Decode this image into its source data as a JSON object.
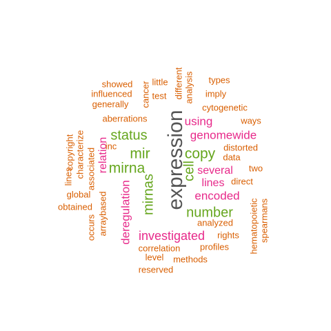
{
  "colors": {
    "orange": "#d95f02",
    "green": "#66a61e",
    "magenta": "#e7298a",
    "gray": "#555555"
  },
  "words": [
    {
      "text": "expression",
      "color": "gray"
    },
    {
      "text": "number",
      "color": "green"
    },
    {
      "text": "mirna",
      "color": "green"
    },
    {
      "text": "mir",
      "color": "green"
    },
    {
      "text": "copy",
      "color": "green"
    },
    {
      "text": "status",
      "color": "green"
    },
    {
      "text": "mirnas",
      "color": "green"
    },
    {
      "text": "cell",
      "color": "green"
    },
    {
      "text": "deregulation",
      "color": "magenta"
    },
    {
      "text": "investigated",
      "color": "magenta"
    },
    {
      "text": "genomewide",
      "color": "magenta"
    },
    {
      "text": "using",
      "color": "magenta"
    },
    {
      "text": "several",
      "color": "magenta"
    },
    {
      "text": "lines",
      "color": "magenta"
    },
    {
      "text": "encoded",
      "color": "magenta"
    },
    {
      "text": "relation",
      "color": "magenta"
    },
    {
      "text": "showed",
      "color": "orange"
    },
    {
      "text": "little",
      "color": "orange"
    },
    {
      "text": "different",
      "color": "orange"
    },
    {
      "text": "types",
      "color": "orange"
    },
    {
      "text": "influenced",
      "color": "orange"
    },
    {
      "text": "test",
      "color": "orange"
    },
    {
      "text": "cancer",
      "color": "orange"
    },
    {
      "text": "analysis",
      "color": "orange"
    },
    {
      "text": "imply",
      "color": "orange"
    },
    {
      "text": "generally",
      "color": "orange"
    },
    {
      "text": "cytogenetic",
      "color": "orange"
    },
    {
      "text": "aberrations",
      "color": "orange"
    },
    {
      "text": "ways",
      "color": "orange"
    },
    {
      "text": "copyright",
      "color": "orange"
    },
    {
      "text": "characterize",
      "color": "orange"
    },
    {
      "text": "inc",
      "color": "orange"
    },
    {
      "text": "associated",
      "color": "orange"
    },
    {
      "text": "distorted",
      "color": "orange"
    },
    {
      "text": "data",
      "color": "orange"
    },
    {
      "text": "two",
      "color": "orange"
    },
    {
      "text": "lines",
      "color": "orange"
    },
    {
      "text": "global",
      "color": "orange"
    },
    {
      "text": "direct",
      "color": "orange"
    },
    {
      "text": "obtained",
      "color": "orange"
    },
    {
      "text": "arraybased",
      "color": "orange"
    },
    {
      "text": "occurs",
      "color": "orange"
    },
    {
      "text": "hematopoietic",
      "color": "orange"
    },
    {
      "text": "spearmans",
      "color": "orange"
    },
    {
      "text": "analyzed",
      "color": "orange"
    },
    {
      "text": "rights",
      "color": "orange"
    },
    {
      "text": "profiles",
      "color": "orange"
    },
    {
      "text": "correlation",
      "color": "orange"
    },
    {
      "text": "level",
      "color": "orange"
    },
    {
      "text": "methods",
      "color": "orange"
    },
    {
      "text": "reserved",
      "color": "orange"
    }
  ]
}
